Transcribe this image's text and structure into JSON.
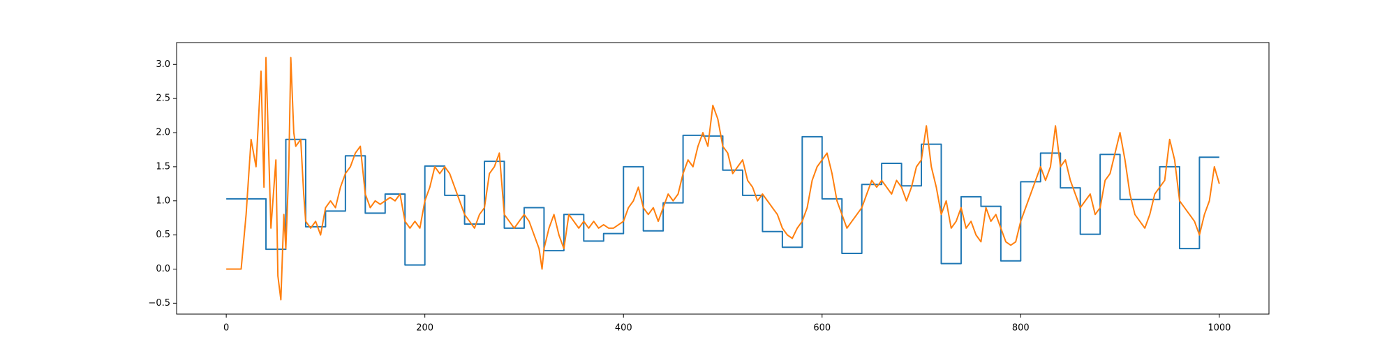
{
  "chart_data": {
    "type": "line",
    "xlim": [
      -50,
      1050
    ],
    "ylim": [
      -0.66,
      3.32
    ],
    "xticks": [
      0,
      200,
      400,
      600,
      800,
      1000
    ],
    "yticks": [
      {
        "value": -0.5,
        "label": "−0.5"
      },
      {
        "value": 0.0,
        "label": "0.0"
      },
      0.5,
      {
        "value": 1.0,
        "label": "1.0"
      },
      1.5,
      {
        "value": 2.0,
        "label": "2.0"
      },
      2.5,
      {
        "value": 3.0,
        "label": "3.0"
      }
    ],
    "series": [
      {
        "color": "#1f77b4",
        "drawstyle": "steps-post",
        "x": [
          0,
          20,
          40,
          60,
          80,
          100,
          120,
          140,
          160,
          180,
          200,
          220,
          240,
          260,
          280,
          300,
          320,
          340,
          360,
          380,
          400,
          420,
          440,
          460,
          480,
          500,
          520,
          540,
          560,
          580,
          600,
          620,
          640,
          660,
          680,
          700,
          720,
          740,
          760,
          780,
          800,
          820,
          840,
          860,
          880,
          900,
          920,
          940,
          960,
          980,
          1000
        ],
        "values": [
          1.03,
          1.03,
          0.29,
          1.9,
          0.62,
          0.85,
          1.66,
          0.82,
          1.1,
          0.06,
          1.51,
          1.08,
          0.66,
          1.58,
          0.6,
          0.9,
          0.27,
          0.8,
          0.41,
          0.52,
          1.5,
          0.56,
          0.97,
          1.96,
          1.95,
          1.45,
          1.08,
          0.55,
          0.32,
          1.94,
          1.03,
          0.23,
          1.24,
          1.55,
          1.22,
          1.83,
          0.08,
          1.06,
          0.92,
          0.12,
          1.28,
          1.7,
          1.19,
          0.51,
          1.68,
          1.02,
          1.02,
          1.5,
          0.3,
          1.64,
          1.64
        ]
      },
      {
        "color": "#ff7f0e",
        "x": [
          0,
          10,
          15,
          20,
          25,
          30,
          35,
          38,
          40,
          45,
          50,
          52,
          55,
          58,
          60,
          63,
          65,
          68,
          70,
          75,
          78,
          80,
          85,
          90,
          95,
          100,
          105,
          110,
          115,
          120,
          125,
          130,
          135,
          140,
          145,
          150,
          155,
          160,
          165,
          170,
          175,
          180,
          185,
          190,
          195,
          200,
          205,
          210,
          215,
          220,
          225,
          230,
          235,
          240,
          245,
          250,
          255,
          260,
          265,
          270,
          275,
          280,
          285,
          290,
          295,
          300,
          305,
          310,
          315,
          318,
          320,
          325,
          330,
          335,
          340,
          345,
          350,
          355,
          360,
          365,
          370,
          375,
          380,
          385,
          390,
          395,
          400,
          405,
          410,
          415,
          420,
          425,
          430,
          435,
          440,
          445,
          450,
          455,
          460,
          465,
          470,
          475,
          480,
          485,
          490,
          495,
          500,
          505,
          510,
          515,
          520,
          525,
          530,
          535,
          540,
          545,
          550,
          555,
          560,
          565,
          570,
          575,
          580,
          585,
          590,
          595,
          600,
          605,
          610,
          615,
          620,
          625,
          630,
          635,
          640,
          645,
          650,
          655,
          660,
          665,
          670,
          675,
          680,
          685,
          690,
          695,
          700,
          705,
          710,
          715,
          720,
          725,
          730,
          735,
          740,
          745,
          750,
          755,
          760,
          765,
          770,
          775,
          780,
          785,
          790,
          795,
          800,
          805,
          810,
          815,
          820,
          825,
          830,
          835,
          840,
          845,
          850,
          855,
          860,
          865,
          870,
          875,
          880,
          885,
          890,
          895,
          900,
          905,
          910,
          915,
          920,
          925,
          930,
          935,
          940,
          945,
          950,
          955,
          960,
          965,
          970,
          975,
          980,
          985,
          990,
          995,
          1000
        ],
        "values": [
          0,
          0,
          0,
          0.8,
          1.9,
          1.5,
          2.9,
          1.2,
          3.1,
          0.6,
          1.6,
          -0.1,
          -0.45,
          0.8,
          0.3,
          1.5,
          3.1,
          2.0,
          1.8,
          1.9,
          1.1,
          0.7,
          0.6,
          0.7,
          0.5,
          0.9,
          1.0,
          0.9,
          1.2,
          1.4,
          1.5,
          1.7,
          1.8,
          1.1,
          0.9,
          1.0,
          0.95,
          1.0,
          1.05,
          1.0,
          1.1,
          0.7,
          0.6,
          0.7,
          0.6,
          1.0,
          1.2,
          1.5,
          1.4,
          1.5,
          1.4,
          1.2,
          1.0,
          0.8,
          0.7,
          0.6,
          0.8,
          0.9,
          1.4,
          1.5,
          1.7,
          0.8,
          0.7,
          0.6,
          0.7,
          0.8,
          0.7,
          0.5,
          0.3,
          0.0,
          0.3,
          0.6,
          0.8,
          0.5,
          0.3,
          0.8,
          0.7,
          0.6,
          0.7,
          0.6,
          0.7,
          0.6,
          0.65,
          0.6,
          0.6,
          0.65,
          0.7,
          0.9,
          1.0,
          1.2,
          0.9,
          0.8,
          0.9,
          0.7,
          0.9,
          1.1,
          1.0,
          1.1,
          1.4,
          1.6,
          1.5,
          1.8,
          2.0,
          1.8,
          2.4,
          2.2,
          1.8,
          1.7,
          1.4,
          1.5,
          1.6,
          1.3,
          1.2,
          1.0,
          1.1,
          1.0,
          0.9,
          0.8,
          0.6,
          0.5,
          0.45,
          0.6,
          0.7,
          0.9,
          1.3,
          1.5,
          1.6,
          1.7,
          1.4,
          1.0,
          0.8,
          0.6,
          0.7,
          0.8,
          0.9,
          1.1,
          1.3,
          1.2,
          1.3,
          1.2,
          1.1,
          1.3,
          1.2,
          1.0,
          1.2,
          1.5,
          1.6,
          2.1,
          1.5,
          1.2,
          0.8,
          1.0,
          0.6,
          0.7,
          0.9,
          0.6,
          0.7,
          0.5,
          0.4,
          0.9,
          0.7,
          0.8,
          0.6,
          0.4,
          0.35,
          0.4,
          0.7,
          0.9,
          1.1,
          1.3,
          1.5,
          1.3,
          1.5,
          2.1,
          1.5,
          1.6,
          1.3,
          1.1,
          0.9,
          1.0,
          1.1,
          0.8,
          0.9,
          1.3,
          1.4,
          1.7,
          2.0,
          1.6,
          1.1,
          0.8,
          0.7,
          0.6,
          0.8,
          1.1,
          1.2,
          1.3,
          1.9,
          1.6,
          1.0,
          0.9,
          0.8,
          0.7,
          0.5,
          0.8,
          1.0,
          1.5,
          1.25
        ]
      }
    ]
  }
}
